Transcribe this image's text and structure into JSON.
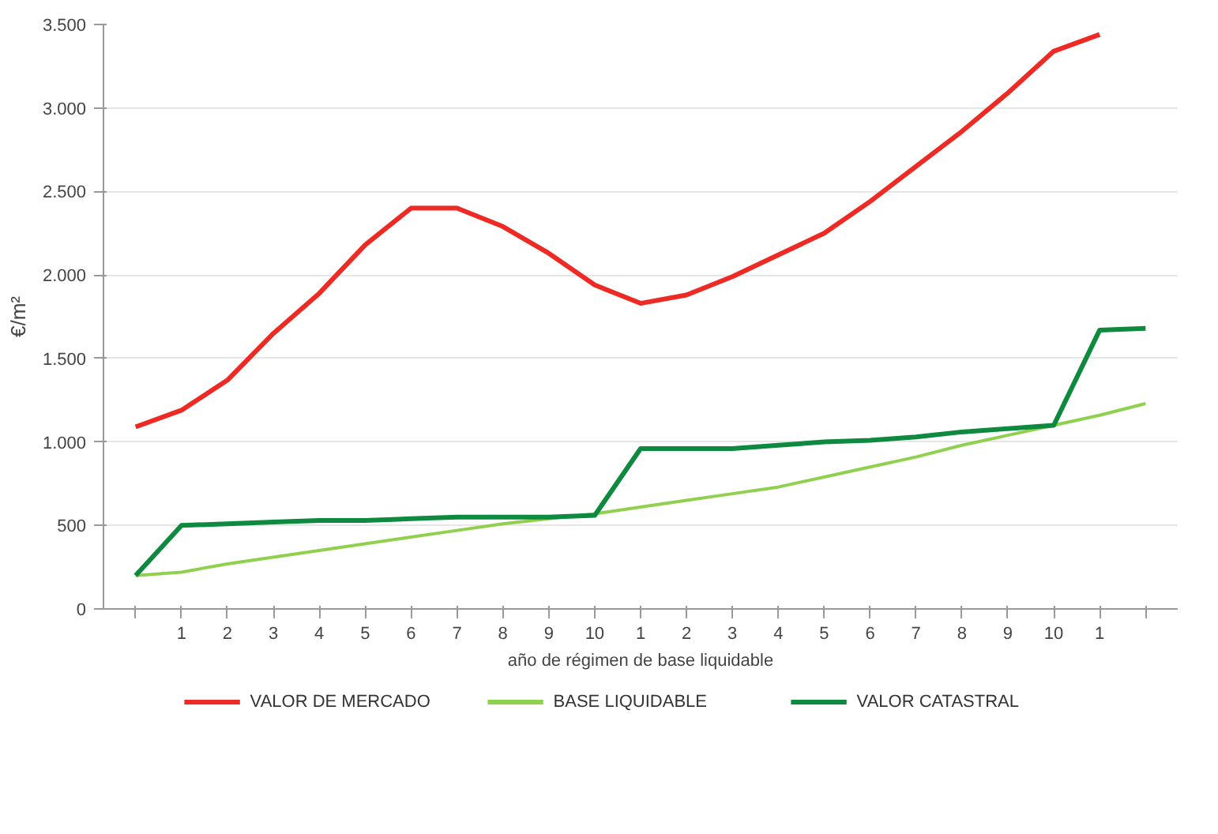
{
  "chart_data": {
    "type": "line",
    "xlabel": "año de régimen de base liquidable",
    "ylabel": "€/m²",
    "categories": [
      null,
      "1",
      "2",
      "3",
      "4",
      "5",
      "6",
      "7",
      "8",
      "9",
      "10",
      "1",
      "2",
      "3",
      "4",
      "5",
      "6",
      "7",
      "8",
      "9",
      "10",
      "1",
      null
    ],
    "series": [
      {
        "name": "VALOR  DE MERCADO",
        "color": "#ee2a24",
        "values": [
          1090,
          1190,
          1370,
          1650,
          1890,
          2180,
          2400,
          2400,
          2290,
          2130,
          1940,
          1830,
          1880,
          1990,
          2120,
          2250,
          2440,
          2650,
          2860,
          3090,
          3340,
          3440,
          null
        ]
      },
      {
        "name": "BASE LIQUIDABLE",
        "color": "#8fd14f",
        "values": [
          200,
          220,
          270,
          310,
          350,
          390,
          430,
          470,
          510,
          540,
          570,
          610,
          650,
          690,
          730,
          790,
          850,
          910,
          980,
          1040,
          1100,
          1160,
          1230
        ]
      },
      {
        "name": "VALOR CATASTRAL",
        "color": "#0e8a3e",
        "values": [
          200,
          500,
          510,
          520,
          530,
          530,
          540,
          550,
          550,
          550,
          560,
          960,
          960,
          960,
          980,
          1000,
          1010,
          1030,
          1060,
          1080,
          1100,
          1670,
          1680
        ]
      }
    ],
    "ylim": [
      0,
      3500
    ],
    "yticks": [
      0,
      500,
      {
        "value": 1000,
        "label": "1.000"
      },
      {
        "value": 1500,
        "label": "1.500"
      },
      {
        "value": 2000,
        "label": "2.000"
      },
      {
        "value": 2500,
        "label": "2.500"
      },
      {
        "value": 3000,
        "label": "3.000"
      },
      {
        "value": 3500,
        "label": "3.500"
      }
    ],
    "grid": "y",
    "legend": "bottom",
    "marker": "none",
    "line_style": "solid"
  }
}
